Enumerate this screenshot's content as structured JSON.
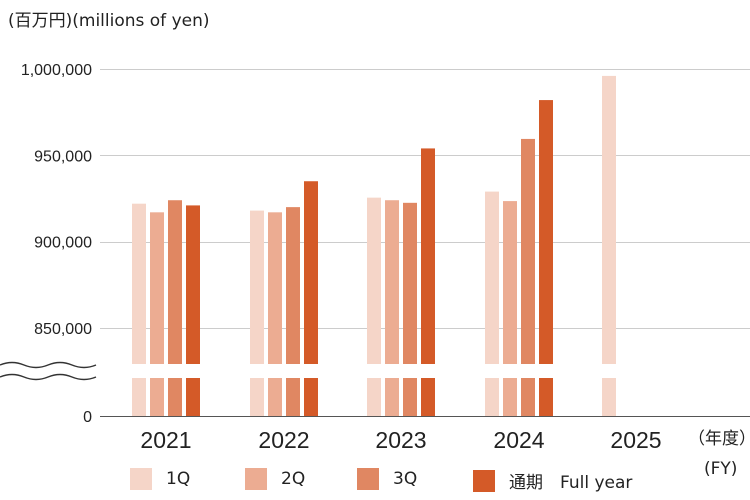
{
  "chart_data": {
    "type": "bar",
    "unit_label": "(百万円)(millions of yen)",
    "categories": [
      "2021",
      "2022",
      "2023",
      "2024",
      "2025"
    ],
    "x_unit_label_top": "（年度）",
    "x_unit_label_bottom": "(FY)",
    "y_tick_labels": [
      "0",
      "850,000",
      "900,000",
      "950,000",
      "1,000,000"
    ],
    "y_ticks": [
      850000,
      900000,
      950000,
      1000000
    ],
    "ylim": [
      830000,
      1000000
    ],
    "axis_break": true,
    "grid": true,
    "legend_position": "bottom",
    "series": [
      {
        "name": "1Q",
        "color": "#f5d5c8",
        "values": [
          922000,
          918000,
          925500,
          929000,
          996000
        ]
      },
      {
        "name": "2Q",
        "color": "#ecac92",
        "values": [
          917000,
          917000,
          924000,
          923500,
          null
        ]
      },
      {
        "name": "3Q",
        "color": "#e08762",
        "values": [
          924000,
          920000,
          922500,
          959500,
          null
        ]
      },
      {
        "name": "通期　Full year",
        "color": "#d45a28",
        "values": [
          921000,
          935000,
          954000,
          982000,
          null
        ]
      }
    ]
  }
}
